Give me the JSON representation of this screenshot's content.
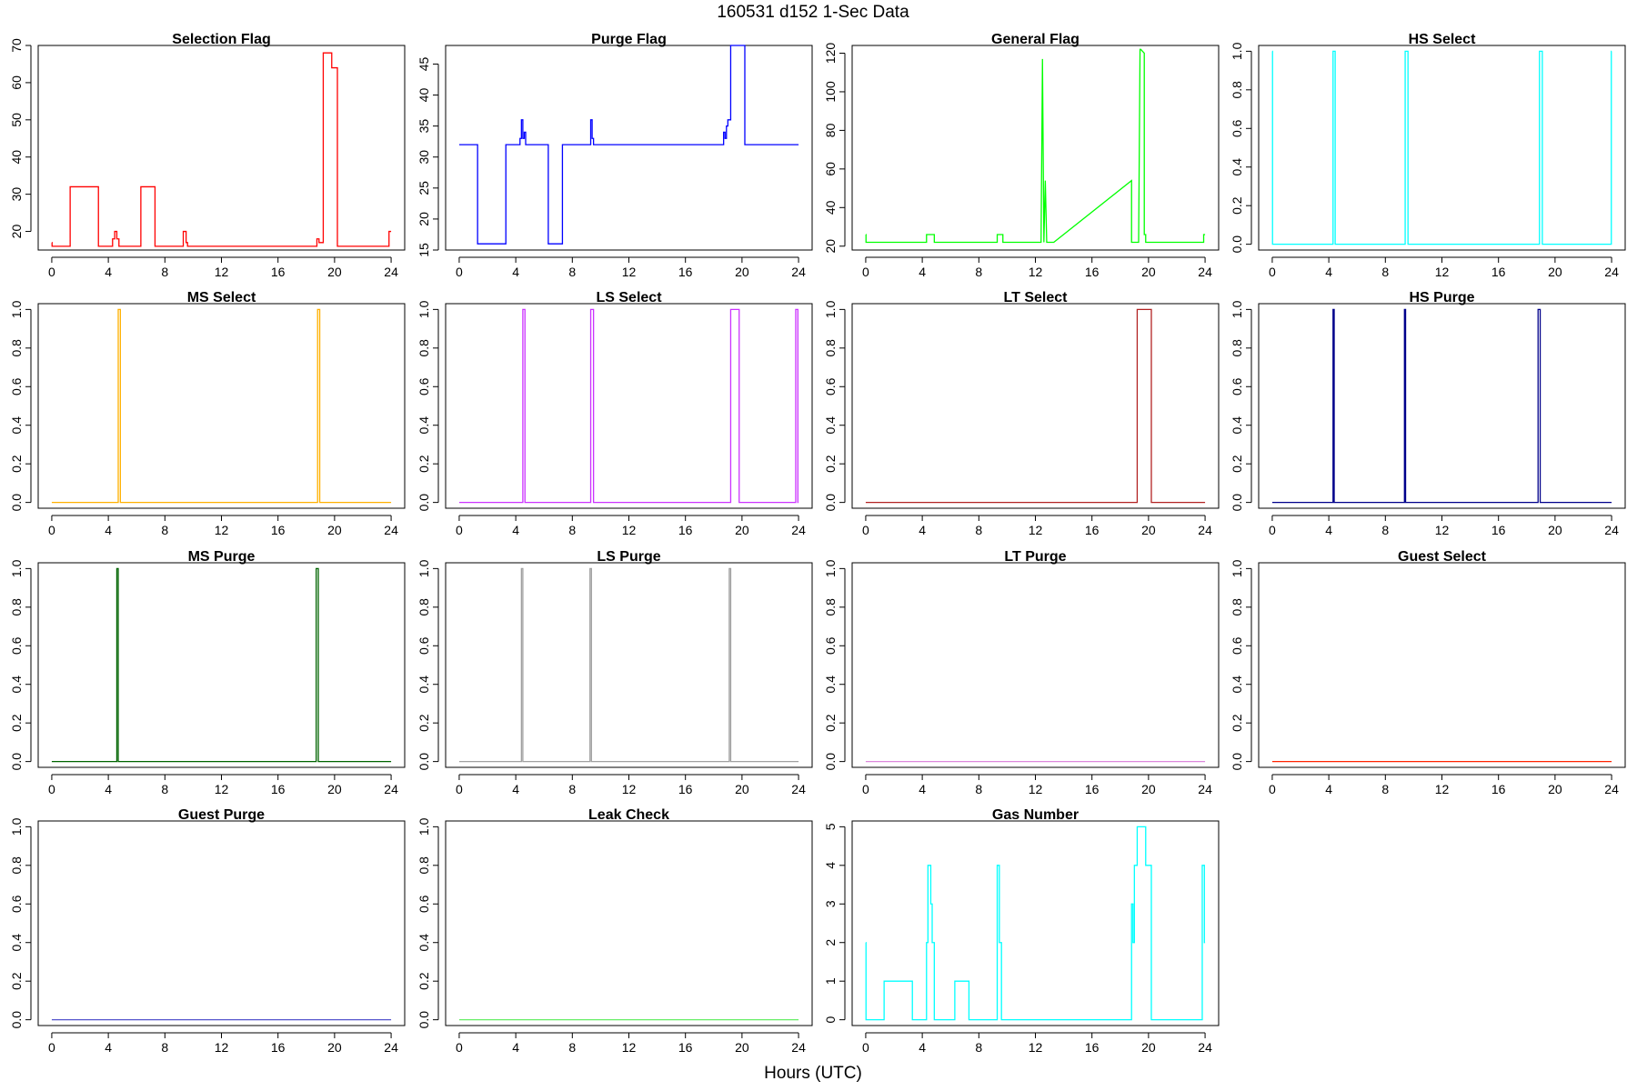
{
  "figure": {
    "title": "160531   d152   1-Sec Data",
    "xlabel": "Hours (UTC)"
  },
  "chart_data": [
    {
      "type": "line",
      "title": "Selection Flag",
      "color": "#ff0000",
      "xlim": [
        0,
        24
      ],
      "ylim": [
        15,
        70
      ],
      "xticks": [
        0,
        4,
        8,
        12,
        16,
        20,
        24
      ],
      "yticks": [
        20,
        30,
        40,
        50,
        60,
        70
      ],
      "x": [
        0,
        0.02,
        0.02,
        1.3,
        1.3,
        3.3,
        3.3,
        4.3,
        4.3,
        4.45,
        4.45,
        4.6,
        4.6,
        4.75,
        4.75,
        6.3,
        6.3,
        7.3,
        7.3,
        9.3,
        9.3,
        9.5,
        9.5,
        9.6,
        9.6,
        18.75,
        18.75,
        18.9,
        18.9,
        19.2,
        19.2,
        19.8,
        19.8,
        20.2,
        20.2,
        23.85,
        23.85,
        24
      ],
      "y": [
        17,
        17,
        16,
        16,
        32,
        32,
        16,
        16,
        18,
        18,
        20,
        20,
        18,
        18,
        16,
        16,
        32,
        32,
        16,
        16,
        20,
        20,
        17,
        17,
        16,
        16,
        18,
        18,
        17,
        17,
        68,
        68,
        64,
        64,
        16,
        16,
        20,
        20
      ]
    },
    {
      "type": "line",
      "title": "Purge Flag",
      "color": "#0000ff",
      "xlim": [
        0,
        24
      ],
      "ylim": [
        15,
        48
      ],
      "xticks": [
        0,
        4,
        8,
        12,
        16,
        20,
        24
      ],
      "yticks": [
        15,
        20,
        25,
        30,
        35,
        40,
        45
      ],
      "x": [
        0,
        1.3,
        1.3,
        3.3,
        3.3,
        4.3,
        4.3,
        4.4,
        4.4,
        4.5,
        4.5,
        4.6,
        4.6,
        4.7,
        4.7,
        6.3,
        6.3,
        7.3,
        7.3,
        9.3,
        9.3,
        9.4,
        9.4,
        9.5,
        9.5,
        18.7,
        18.7,
        18.8,
        18.8,
        18.9,
        18.9,
        19.0,
        19.0,
        19.2,
        19.2,
        20.2,
        20.2,
        24
      ],
      "y": [
        32,
        32,
        16,
        16,
        32,
        32,
        33,
        33,
        36,
        36,
        33,
        33,
        34,
        34,
        32,
        32,
        16,
        16,
        32,
        32,
        36,
        36,
        33,
        33,
        32,
        32,
        34,
        34,
        33,
        33,
        35,
        35,
        36,
        36,
        48,
        48,
        32,
        32
      ]
    },
    {
      "type": "line",
      "title": "General Flag",
      "color": "#00ff00",
      "xlim": [
        0,
        24
      ],
      "ylim": [
        18,
        124
      ],
      "xticks": [
        0,
        4,
        8,
        12,
        16,
        20,
        24
      ],
      "yticks": [
        20,
        40,
        60,
        80,
        100,
        120
      ],
      "x": [
        0,
        0.02,
        0.02,
        4.3,
        4.3,
        4.85,
        4.85,
        9.3,
        9.3,
        9.7,
        9.7,
        12.4,
        12.5,
        12.6,
        12.7,
        12.8,
        12.9,
        13.3,
        18.8,
        18.8,
        19.3,
        19.4,
        19.45,
        19.7,
        19.7,
        19.8,
        19.8,
        23.9,
        23.9,
        24
      ],
      "y": [
        26,
        26,
        22,
        22,
        26,
        26,
        22,
        22,
        26,
        26,
        22,
        22,
        117,
        22,
        54,
        22,
        22,
        22,
        54,
        22,
        22,
        122,
        122,
        120,
        26,
        26,
        22,
        22,
        26,
        26
      ]
    },
    {
      "type": "line",
      "title": "HS Select",
      "color": "#00ffff",
      "xlim": [
        0,
        24
      ],
      "ylim": [
        -0.03,
        1.03
      ],
      "xticks": [
        0,
        4,
        8,
        12,
        16,
        20,
        24
      ],
      "yticks": [
        0.0,
        0.2,
        0.4,
        0.6,
        0.8,
        1.0
      ],
      "x": [
        0,
        0.02,
        0.02,
        4.3,
        4.3,
        4.45,
        4.45,
        9.4,
        9.4,
        9.6,
        9.6,
        18.9,
        18.9,
        19.1,
        19.1,
        23.98,
        23.98,
        24
      ],
      "y": [
        1,
        1,
        0,
        0,
        1,
        1,
        0,
        0,
        1,
        1,
        0,
        0,
        1,
        1,
        0,
        0,
        1,
        1
      ]
    },
    {
      "type": "line",
      "title": "MS Select",
      "color": "#ffb000",
      "xlim": [
        0,
        24
      ],
      "ylim": [
        -0.03,
        1.03
      ],
      "xticks": [
        0,
        4,
        8,
        12,
        16,
        20,
        24
      ],
      "yticks": [
        0.0,
        0.2,
        0.4,
        0.6,
        0.8,
        1.0
      ],
      "x": [
        0,
        4.7,
        4.7,
        4.85,
        4.85,
        18.8,
        18.8,
        18.95,
        18.95,
        24
      ],
      "y": [
        0,
        0,
        1,
        1,
        0,
        0,
        1,
        1,
        0,
        0
      ]
    },
    {
      "type": "line",
      "title": "LS Select",
      "color": "#cc33ff",
      "xlim": [
        0,
        24
      ],
      "ylim": [
        -0.03,
        1.03
      ],
      "xticks": [
        0,
        4,
        8,
        12,
        16,
        20,
        24
      ],
      "yticks": [
        0.0,
        0.2,
        0.4,
        0.6,
        0.8,
        1.0
      ],
      "x": [
        0,
        4.5,
        4.5,
        4.65,
        4.65,
        9.3,
        9.3,
        9.5,
        9.5,
        19.2,
        19.2,
        19.8,
        19.8,
        23.8,
        23.8,
        23.95,
        23.95,
        24
      ],
      "y": [
        0,
        0,
        1,
        1,
        0,
        0,
        1,
        1,
        0,
        0,
        1,
        1,
        0,
        0,
        1,
        1,
        0,
        0
      ]
    },
    {
      "type": "line",
      "title": "LT Select",
      "color": "#b22222",
      "xlim": [
        0,
        24
      ],
      "ylim": [
        -0.03,
        1.03
      ],
      "xticks": [
        0,
        4,
        8,
        12,
        16,
        20,
        24
      ],
      "yticks": [
        0.0,
        0.2,
        0.4,
        0.6,
        0.8,
        1.0
      ],
      "x": [
        0,
        19.2,
        19.2,
        20.2,
        20.2,
        24
      ],
      "y": [
        0,
        0,
        1,
        1,
        0,
        0
      ]
    },
    {
      "type": "line",
      "title": "HS Purge",
      "color": "#00008b",
      "xlim": [
        0,
        24
      ],
      "ylim": [
        -0.03,
        1.03
      ],
      "xticks": [
        0,
        4,
        8,
        12,
        16,
        20,
        24
      ],
      "yticks": [
        0.0,
        0.2,
        0.4,
        0.6,
        0.8,
        1.0
      ],
      "x": [
        0,
        4.3,
        4.3,
        4.38,
        4.38,
        9.35,
        9.35,
        9.43,
        9.43,
        18.8,
        18.8,
        18.95,
        18.95,
        24
      ],
      "y": [
        0,
        0,
        1,
        1,
        0,
        0,
        1,
        1,
        0,
        0,
        1,
        1,
        0,
        0
      ]
    },
    {
      "type": "line",
      "title": "MS Purge",
      "color": "#006400",
      "xlim": [
        0,
        24
      ],
      "ylim": [
        -0.03,
        1.03
      ],
      "xticks": [
        0,
        4,
        8,
        12,
        16,
        20,
        24
      ],
      "yticks": [
        0.0,
        0.2,
        0.4,
        0.6,
        0.8,
        1.0
      ],
      "x": [
        0,
        4.6,
        4.6,
        4.7,
        4.7,
        18.7,
        18.7,
        18.85,
        18.85,
        24
      ],
      "y": [
        0,
        0,
        1,
        1,
        0,
        0,
        1,
        1,
        0,
        0
      ]
    },
    {
      "type": "line",
      "title": "LS Purge",
      "color": "#a0a0a0",
      "xlim": [
        0,
        24
      ],
      "ylim": [
        -0.03,
        1.03
      ],
      "xticks": [
        0,
        4,
        8,
        12,
        16,
        20,
        24
      ],
      "yticks": [
        0.0,
        0.2,
        0.4,
        0.6,
        0.8,
        1.0
      ],
      "x": [
        0,
        4.4,
        4.4,
        4.5,
        4.5,
        9.25,
        9.25,
        9.35,
        9.35,
        19.1,
        19.1,
        19.2,
        19.2,
        24
      ],
      "y": [
        0,
        0,
        1,
        1,
        0,
        0,
        1,
        1,
        0,
        0,
        1,
        1,
        0,
        0
      ]
    },
    {
      "type": "line",
      "title": "LT Purge",
      "color": "#dd88dd",
      "xlim": [
        0,
        24
      ],
      "ylim": [
        -0.03,
        1.03
      ],
      "xticks": [
        0,
        4,
        8,
        12,
        16,
        20,
        24
      ],
      "yticks": [
        0.0,
        0.2,
        0.4,
        0.6,
        0.8,
        1.0
      ],
      "x": [
        0,
        24
      ],
      "y": [
        0,
        0
      ]
    },
    {
      "type": "line",
      "title": "Guest Select",
      "color": "#ff2200",
      "xlim": [
        0,
        24
      ],
      "ylim": [
        -0.03,
        1.03
      ],
      "xticks": [
        0,
        4,
        8,
        12,
        16,
        20,
        24
      ],
      "yticks": [
        0.0,
        0.2,
        0.4,
        0.6,
        0.8,
        1.0
      ],
      "x": [
        0,
        24
      ],
      "y": [
        0,
        0
      ]
    },
    {
      "type": "line",
      "title": "Guest Purge",
      "color": "#5555cc",
      "xlim": [
        0,
        24
      ],
      "ylim": [
        -0.03,
        1.03
      ],
      "xticks": [
        0,
        4,
        8,
        12,
        16,
        20,
        24
      ],
      "yticks": [
        0.0,
        0.2,
        0.4,
        0.6,
        0.8,
        1.0
      ],
      "x": [
        0,
        24
      ],
      "y": [
        0,
        0
      ]
    },
    {
      "type": "line",
      "title": "Leak Check",
      "color": "#66ee66",
      "xlim": [
        0,
        24
      ],
      "ylim": [
        -0.03,
        1.03
      ],
      "xticks": [
        0,
        4,
        8,
        12,
        16,
        20,
        24
      ],
      "yticks": [
        0.0,
        0.2,
        0.4,
        0.6,
        0.8,
        1.0
      ],
      "x": [
        0,
        24
      ],
      "y": [
        0,
        0
      ]
    },
    {
      "type": "line",
      "title": "Gas Number",
      "color": "#00ffff",
      "xlim": [
        0,
        24
      ],
      "ylim": [
        -0.15,
        5.15
      ],
      "xticks": [
        0,
        4,
        8,
        12,
        16,
        20,
        24
      ],
      "yticks": [
        0,
        1,
        2,
        3,
        4,
        5
      ],
      "x": [
        0,
        0.02,
        0.02,
        1.3,
        1.3,
        3.3,
        3.3,
        4.3,
        4.3,
        4.4,
        4.4,
        4.6,
        4.6,
        4.7,
        4.7,
        4.85,
        4.85,
        6.3,
        6.3,
        7.3,
        7.3,
        9.3,
        9.3,
        9.45,
        9.45,
        9.6,
        9.6,
        18.8,
        18.8,
        18.9,
        18.9,
        19.0,
        19.0,
        19.2,
        19.2,
        19.8,
        19.8,
        20.2,
        20.2,
        23.8,
        23.8,
        23.95,
        23.95,
        24
      ],
      "y": [
        2,
        2,
        0,
        0,
        1,
        1,
        0,
        0,
        2,
        2,
        4,
        4,
        3,
        3,
        2,
        2,
        0,
        0,
        1,
        1,
        0,
        0,
        4,
        4,
        2,
        2,
        0,
        0,
        3,
        3,
        2,
        2,
        4,
        4,
        5,
        5,
        4,
        4,
        0,
        0,
        4,
        4,
        2,
        2
      ]
    }
  ]
}
